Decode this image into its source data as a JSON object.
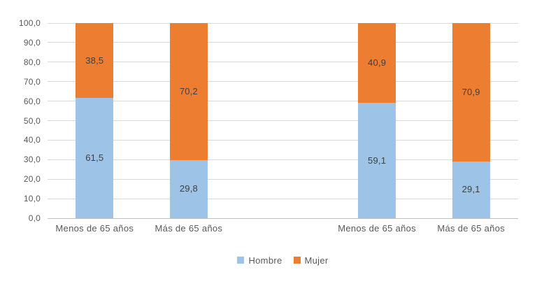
{
  "chart_data": {
    "type": "bar",
    "subtype": "stacked-100",
    "orientation": "vertical",
    "categories": [
      "Menos de 65 años",
      "Más de 65 años",
      "Menos de 65 años",
      "Más de 65 años"
    ],
    "series": [
      {
        "name": "Hombre",
        "color": "#9DC3E6",
        "values": [
          61.5,
          29.8,
          59.1,
          29.1
        ],
        "labels": [
          "61,5",
          "29,8",
          "59,1",
          "29,1"
        ]
      },
      {
        "name": "Mujer",
        "color": "#ED7D31",
        "values": [
          38.5,
          70.2,
          40.9,
          70.9
        ],
        "labels": [
          "38,5",
          "70,2",
          "40,9",
          "70,9"
        ]
      }
    ],
    "groups": [
      [
        0,
        1
      ],
      [
        2,
        3
      ]
    ],
    "title": "",
    "xlabel": "",
    "ylabel": "",
    "ylim": [
      0,
      100
    ],
    "y_tick_step": 10,
    "y_ticks": [
      "0,0",
      "10,0",
      "20,0",
      "30,0",
      "40,0",
      "50,0",
      "60,0",
      "70,0",
      "80,0",
      "90,0",
      "100,0"
    ],
    "grid": true,
    "legend_position": "bottom",
    "legend": [
      {
        "label": "Hombre",
        "color": "#9DC3E6"
      },
      {
        "label": "Mujer",
        "color": "#ED7D31"
      }
    ],
    "colors": {
      "gridline": "#D9D9D9",
      "axis_line": "#BFBFBF",
      "tick_text": "#595959",
      "category_text": "#595959",
      "data_label_text": "#404040",
      "legend_text": "#595959",
      "background": "#FFFFFF"
    }
  }
}
